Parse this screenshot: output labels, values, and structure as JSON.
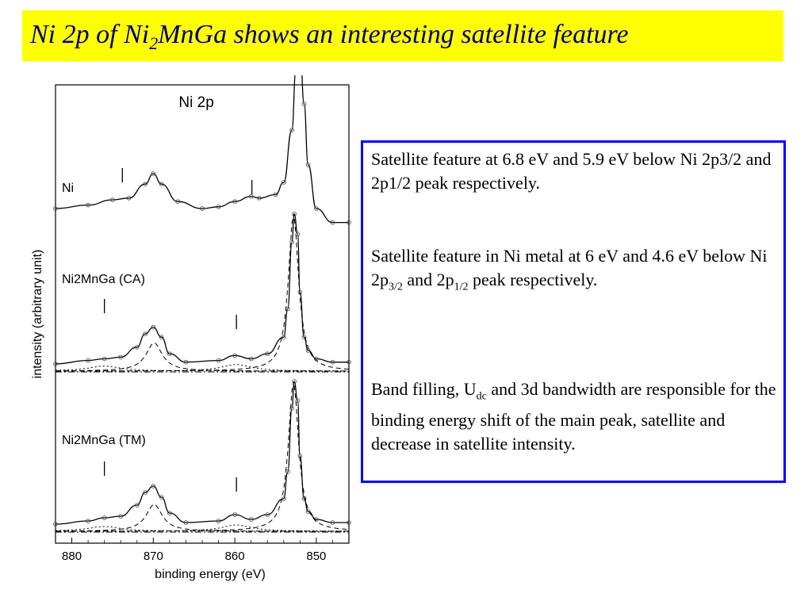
{
  "slide": {
    "title_main": "Ni 2p of  Ni",
    "title_sub": "2",
    "title_rest": "MnGa shows  an interesting satellite feature",
    "title_bg": "#ffff00",
    "title_color": "#000080"
  },
  "textbox": {
    "p1": "Satellite feature at 6.8 eV and 5.9 eV below Ni 2p3/2 and 2p1/2 peak respectively.",
    "p2_a": "Satellite feature in Ni metal at 6 eV and 4.6 eV below Ni 2p",
    "p2_sub1": "3/2",
    "p2_b": " and 2p",
    "p2_sub2": "1/2",
    "p2_c": " peak respectively.",
    "p3_a": "Band filling, U",
    "p3_sub": "dc",
    "p3_b": " and 3d bandwidth are responsible for the binding energy shift of the main peak, satellite and decrease in satellite intensity.",
    "border_color": "#0000ff"
  },
  "chart_data": {
    "type": "line",
    "title": "Ni 2p",
    "xlabel": "binding energy (eV)",
    "ylabel": "intensity (arbitrary unit)",
    "xlim": [
      882,
      846
    ],
    "xticks": [
      880,
      870,
      860,
      850
    ],
    "x_reversed": true,
    "grid": false,
    "series": [
      {
        "name": "Ni",
        "x": [
          882,
          878,
          875,
          873,
          871,
          870,
          869,
          867,
          864,
          862,
          860,
          858,
          857,
          855,
          854,
          853,
          852.5,
          852,
          851.5,
          851,
          850,
          848,
          846
        ],
        "y": [
          0.0,
          0.02,
          0.05,
          0.06,
          0.14,
          0.2,
          0.14,
          0.04,
          0.0,
          0.01,
          0.04,
          0.07,
          0.06,
          0.08,
          0.15,
          0.45,
          0.8,
          0.92,
          0.6,
          0.25,
          0.0,
          -0.08,
          -0.08
        ]
      },
      {
        "name": "Ni2MnGa (CA)",
        "x": [
          882,
          878,
          876,
          874,
          872,
          871,
          870,
          869,
          868,
          866,
          862,
          860,
          858,
          856,
          854,
          853.5,
          853,
          852.7,
          852.3,
          852,
          851.5,
          851,
          850,
          848,
          846
        ],
        "y": [
          0.02,
          0.04,
          0.05,
          0.06,
          0.12,
          0.2,
          0.24,
          0.18,
          0.08,
          0.03,
          0.04,
          0.07,
          0.05,
          0.08,
          0.18,
          0.35,
          0.75,
          0.92,
          0.8,
          0.45,
          0.18,
          0.1,
          0.05,
          0.03,
          0.03
        ]
      },
      {
        "name": "Ni2MnGa (TM)",
        "x": [
          882,
          878,
          876,
          874,
          872,
          871,
          870,
          869,
          868,
          866,
          862,
          860,
          858,
          856,
          854,
          853.5,
          853,
          852.7,
          852.3,
          852,
          851.5,
          851,
          850,
          848,
          846
        ],
        "y": [
          0.02,
          0.04,
          0.06,
          0.07,
          0.14,
          0.22,
          0.26,
          0.19,
          0.09,
          0.03,
          0.04,
          0.08,
          0.05,
          0.08,
          0.18,
          0.35,
          0.75,
          0.92,
          0.8,
          0.45,
          0.18,
          0.1,
          0.05,
          0.03,
          0.03
        ]
      }
    ],
    "labels": [
      "Ni",
      "Ni2MnGa (CA)",
      "Ni2MnGa (TM)"
    ],
    "satellite_markers_ev": [
      [
        873.8,
        857.9
      ],
      [
        876.0,
        859.8
      ],
      [
        876.0,
        859.8
      ]
    ]
  }
}
